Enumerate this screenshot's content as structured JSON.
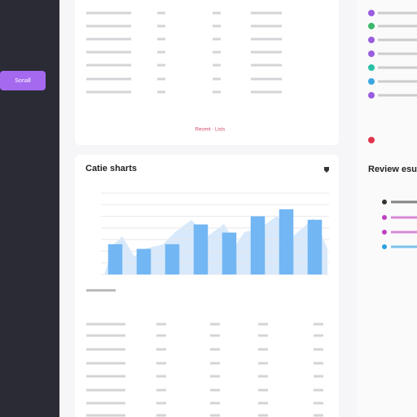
{
  "sidebar": {
    "button": "Sonall"
  },
  "top_panel": {
    "link": "Recent · Lists"
  },
  "chart_panel": {
    "title": "Catie sharts",
    "chart": {
      "type": "bar",
      "values": [
        2.6,
        2.2,
        2.6,
        4.3,
        3.6,
        5.0,
        5.6,
        4.7
      ],
      "ylim": [
        0,
        7
      ],
      "yticks": [
        0,
        1,
        2,
        3,
        4,
        5,
        6,
        7
      ],
      "color": "#72b6f4",
      "grid": true
    }
  },
  "right_panel": {
    "heading": "Review esu"
  }
}
